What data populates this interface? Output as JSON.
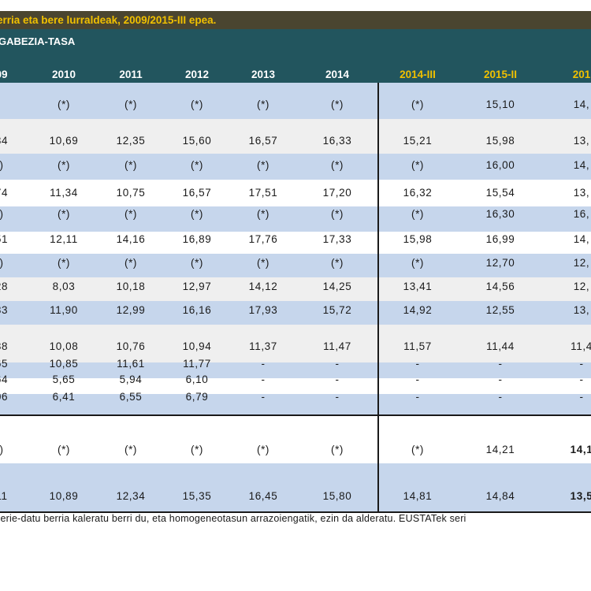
{
  "title": "erria eta bere lurraldeak, 2009/2015-III epea.",
  "subtitle": "GABEZIA-TASA",
  "columns": [
    "09",
    "2010",
    "2011",
    "2012",
    "2013",
    "2014",
    "2014-III",
    "2015-II",
    "201"
  ],
  "rows": [
    {
      "values": [
        "",
        "(*)",
        "(*)",
        "(*)",
        "(*)",
        "(*)",
        "(*)",
        "15,10",
        "14,"
      ]
    },
    {
      "values": [
        "34",
        "10,69",
        "12,35",
        "15,60",
        "16,57",
        "16,33",
        "15,21",
        "15,98",
        "13,"
      ]
    },
    {
      "values": [
        ")",
        "(*)",
        "(*)",
        "(*)",
        "(*)",
        "(*)",
        "(*)",
        "16,00",
        "14,"
      ]
    },
    {
      "values": [
        "74",
        "11,34",
        "10,75",
        "16,57",
        "17,51",
        "17,20",
        "16,32",
        "15,54",
        "13,"
      ]
    },
    {
      "values": [
        ")",
        "(*)",
        "(*)",
        "(*)",
        "(*)",
        "(*)",
        "(*)",
        "16,30",
        "16,"
      ]
    },
    {
      "values": [
        "51",
        "12,11",
        "14,16",
        "16,89",
        "17,76",
        "17,33",
        "15,98",
        "16,99",
        "14,"
      ]
    },
    {
      "values": [
        ")",
        "(*)",
        "(*)",
        "(*)",
        "(*)",
        "(*)",
        "(*)",
        "12,70",
        "12,"
      ]
    },
    {
      "values": [
        "28",
        "8,03",
        "10,18",
        "12,97",
        "14,12",
        "14,25",
        "13,41",
        "14,56",
        "12,"
      ]
    },
    {
      "values": [
        "83",
        "11,90",
        "12,99",
        "16,16",
        "17,93",
        "15,72",
        "14,92",
        "12,55",
        "13,"
      ]
    },
    {
      "values": [
        "38",
        "10,08",
        "10,76",
        "10,94",
        "11,37",
        "11,47",
        "11,57",
        "11,44",
        "11,4"
      ]
    },
    {
      "values": [
        "65",
        "10,85",
        "11,61",
        "11,77",
        "-",
        "-",
        "-",
        "-",
        "-"
      ]
    },
    {
      "values": [
        "64",
        "5,65",
        "5,94",
        "6,10",
        "-",
        "-",
        "-",
        "-",
        "-"
      ]
    },
    {
      "values": [
        "06",
        "6,41",
        "6,55",
        "6,79",
        "-",
        "-",
        "-",
        "-",
        "-"
      ]
    },
    {
      "values": [
        ")",
        "(*)",
        "(*)",
        "(*)",
        "(*)",
        "(*)",
        "(*)",
        "14,21",
        "14,1"
      ]
    },
    {
      "values": [
        "11",
        "10,89",
        "12,34",
        "15,35",
        "16,45",
        "15,80",
        "14,81",
        "14,84",
        "13,5"
      ]
    }
  ],
  "footnote": "serie-datu berria kaleratu berri du, eta homogeneotasun arrazoiengatik, ezin da alderatu. EUSTATek seri"
}
